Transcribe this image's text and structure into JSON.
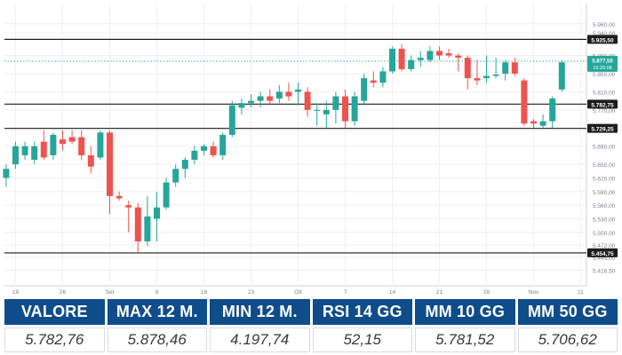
{
  "chart_data": {
    "type": "candlestick",
    "ylim": [
      5390,
      5985
    ],
    "up_color": "#26a69a",
    "down_color": "#ef5350",
    "y_ticks": [
      "5.416,50",
      "5.445,00",
      "5.472,00",
      "5.500,00",
      "5.530,00",
      "5.560,00",
      "5.590,00",
      "5.620,00",
      "5.650,00",
      "5.690,00",
      "5.730,00",
      "5.770,00",
      "5.810,00",
      "5.850,00",
      "5.890,00",
      "5.940,00",
      "5.960,00"
    ],
    "y_tick_values": [
      5416.5,
      5445,
      5472,
      5500,
      5530,
      5560,
      5590,
      5620,
      5650,
      5690,
      5730,
      5770,
      5810,
      5850,
      5890,
      5940,
      5960
    ],
    "x_ticks": [
      "19",
      "26",
      "Set",
      "9",
      "16",
      "23",
      "Ott",
      "7",
      "14",
      "21",
      "28",
      "Nov",
      "11"
    ],
    "x_tick_positions": [
      0,
      5,
      10,
      15,
      20,
      25,
      30,
      35,
      40,
      45,
      50,
      55,
      60
    ],
    "candles": [
      {
        "i": -1,
        "o": 5620,
        "h": 5650,
        "l": 5600,
        "c": 5640
      },
      {
        "i": 0,
        "o": 5650,
        "h": 5700,
        "l": 5640,
        "c": 5690
      },
      {
        "i": 1,
        "o": 5670,
        "h": 5700,
        "l": 5660,
        "c": 5690
      },
      {
        "i": 2,
        "o": 5660,
        "h": 5700,
        "l": 5650,
        "c": 5690
      },
      {
        "i": 3,
        "o": 5700,
        "h": 5725,
        "l": 5660,
        "c": 5665
      },
      {
        "i": 4,
        "o": 5670,
        "h": 5720,
        "l": 5660,
        "c": 5715
      },
      {
        "i": 5,
        "o": 5705,
        "h": 5725,
        "l": 5680,
        "c": 5695
      },
      {
        "i": 6,
        "o": 5710,
        "h": 5725,
        "l": 5695,
        "c": 5700
      },
      {
        "i": 7,
        "o": 5710,
        "h": 5725,
        "l": 5660,
        "c": 5670
      },
      {
        "i": 8,
        "o": 5670,
        "h": 5690,
        "l": 5630,
        "c": 5645
      },
      {
        "i": 9,
        "o": 5665,
        "h": 5725,
        "l": 5660,
        "c": 5720
      },
      {
        "i": 10,
        "o": 5720,
        "h": 5725,
        "l": 5540,
        "c": 5580
      },
      {
        "i": 11,
        "o": 5580,
        "h": 5590,
        "l": 5570,
        "c": 5575
      },
      {
        "i": 12,
        "o": 5560,
        "h": 5570,
        "l": 5500,
        "c": 5555
      },
      {
        "i": 13,
        "o": 5555,
        "h": 5565,
        "l": 5455,
        "c": 5480
      },
      {
        "i": 14,
        "o": 5480,
        "h": 5580,
        "l": 5470,
        "c": 5535
      },
      {
        "i": 15,
        "o": 5530,
        "h": 5590,
        "l": 5480,
        "c": 5555
      },
      {
        "i": 16,
        "o": 5555,
        "h": 5620,
        "l": 5550,
        "c": 5610
      },
      {
        "i": 17,
        "o": 5610,
        "h": 5650,
        "l": 5600,
        "c": 5640
      },
      {
        "i": 18,
        "o": 5640,
        "h": 5665,
        "l": 5620,
        "c": 5660
      },
      {
        "i": 19,
        "o": 5660,
        "h": 5690,
        "l": 5650,
        "c": 5680
      },
      {
        "i": 20,
        "o": 5680,
        "h": 5695,
        "l": 5670,
        "c": 5690
      },
      {
        "i": 21,
        "o": 5690,
        "h": 5700,
        "l": 5665,
        "c": 5670
      },
      {
        "i": 22,
        "o": 5670,
        "h": 5720,
        "l": 5660,
        "c": 5715
      },
      {
        "i": 23,
        "o": 5715,
        "h": 5790,
        "l": 5710,
        "c": 5780
      },
      {
        "i": 24,
        "o": 5775,
        "h": 5795,
        "l": 5760,
        "c": 5785
      },
      {
        "i": 25,
        "o": 5785,
        "h": 5805,
        "l": 5775,
        "c": 5790
      },
      {
        "i": 26,
        "o": 5790,
        "h": 5810,
        "l": 5775,
        "c": 5800
      },
      {
        "i": 27,
        "o": 5800,
        "h": 5815,
        "l": 5780,
        "c": 5790
      },
      {
        "i": 28,
        "o": 5795,
        "h": 5825,
        "l": 5785,
        "c": 5810
      },
      {
        "i": 29,
        "o": 5810,
        "h": 5830,
        "l": 5790,
        "c": 5800
      },
      {
        "i": 30,
        "o": 5810,
        "h": 5830,
        "l": 5780,
        "c": 5815
      },
      {
        "i": 31,
        "o": 5810,
        "h": 5820,
        "l": 5755,
        "c": 5770
      },
      {
        "i": 32,
        "o": 5770,
        "h": 5785,
        "l": 5735,
        "c": 5770
      },
      {
        "i": 33,
        "o": 5760,
        "h": 5790,
        "l": 5730,
        "c": 5770
      },
      {
        "i": 34,
        "o": 5770,
        "h": 5810,
        "l": 5740,
        "c": 5800
      },
      {
        "i": 35,
        "o": 5800,
        "h": 5815,
        "l": 5730,
        "c": 5745
      },
      {
        "i": 36,
        "o": 5745,
        "h": 5810,
        "l": 5735,
        "c": 5800
      },
      {
        "i": 37,
        "o": 5790,
        "h": 5850,
        "l": 5780,
        "c": 5840
      },
      {
        "i": 38,
        "o": 5835,
        "h": 5855,
        "l": 5820,
        "c": 5830
      },
      {
        "i": 39,
        "o": 5830,
        "h": 5865,
        "l": 5820,
        "c": 5855
      },
      {
        "i": 40,
        "o": 5855,
        "h": 5910,
        "l": 5850,
        "c": 5905
      },
      {
        "i": 41,
        "o": 5905,
        "h": 5915,
        "l": 5855,
        "c": 5860
      },
      {
        "i": 42,
        "o": 5860,
        "h": 5890,
        "l": 5855,
        "c": 5880
      },
      {
        "i": 43,
        "o": 5880,
        "h": 5900,
        "l": 5865,
        "c": 5885
      },
      {
        "i": 44,
        "o": 5880,
        "h": 5910,
        "l": 5875,
        "c": 5900
      },
      {
        "i": 45,
        "o": 5900,
        "h": 5910,
        "l": 5880,
        "c": 5890
      },
      {
        "i": 46,
        "o": 5895,
        "h": 5905,
        "l": 5885,
        "c": 5890
      },
      {
        "i": 47,
        "o": 5890,
        "h": 5895,
        "l": 5855,
        "c": 5885
      },
      {
        "i": 48,
        "o": 5885,
        "h": 5890,
        "l": 5815,
        "c": 5840
      },
      {
        "i": 49,
        "o": 5840,
        "h": 5880,
        "l": 5825,
        "c": 5835
      },
      {
        "i": 50,
        "o": 5840,
        "h": 5890,
        "l": 5830,
        "c": 5845
      },
      {
        "i": 51,
        "o": 5845,
        "h": 5885,
        "l": 5840,
        "c": 5848
      },
      {
        "i": 52,
        "o": 5850,
        "h": 5880,
        "l": 5835,
        "c": 5875
      },
      {
        "i": 53,
        "o": 5875,
        "h": 5885,
        "l": 5845,
        "c": 5850
      },
      {
        "i": 54,
        "o": 5835,
        "h": 5840,
        "l": 5735,
        "c": 5740
      },
      {
        "i": 55,
        "o": 5745,
        "h": 5750,
        "l": 5730,
        "c": 5740
      },
      {
        "i": 56,
        "o": 5735,
        "h": 5760,
        "l": 5730,
        "c": 5745
      },
      {
        "i": 57,
        "o": 5745,
        "h": 5800,
        "l": 5730,
        "c": 5795
      },
      {
        "i": 58,
        "o": 5815,
        "h": 5880,
        "l": 5810,
        "c": 5875
      }
    ],
    "levels": [
      {
        "value": 5925.5,
        "label": "5.925,50"
      },
      {
        "value": 5782.75,
        "label": "5.782,75"
      },
      {
        "value": 5729.25,
        "label": "5.729,25"
      },
      {
        "value": 5454.75,
        "label": "5.454,75"
      }
    ],
    "last_price": {
      "value": 5877.5,
      "label": "5.877,50",
      "countdown": "16:20:08"
    }
  },
  "stats": [
    {
      "label": "VALORE",
      "value": "5.782,76"
    },
    {
      "label": "MAX 12 M.",
      "value": "5.878,46"
    },
    {
      "label": "MIN 12 M.",
      "value": "4.197,74"
    },
    {
      "label": "RSI 14 GG",
      "value": "52,15"
    },
    {
      "label": "MM 10 GG",
      "value": "5.781,52"
    },
    {
      "label": "MM 50 GG",
      "value": "5.706,62"
    }
  ]
}
